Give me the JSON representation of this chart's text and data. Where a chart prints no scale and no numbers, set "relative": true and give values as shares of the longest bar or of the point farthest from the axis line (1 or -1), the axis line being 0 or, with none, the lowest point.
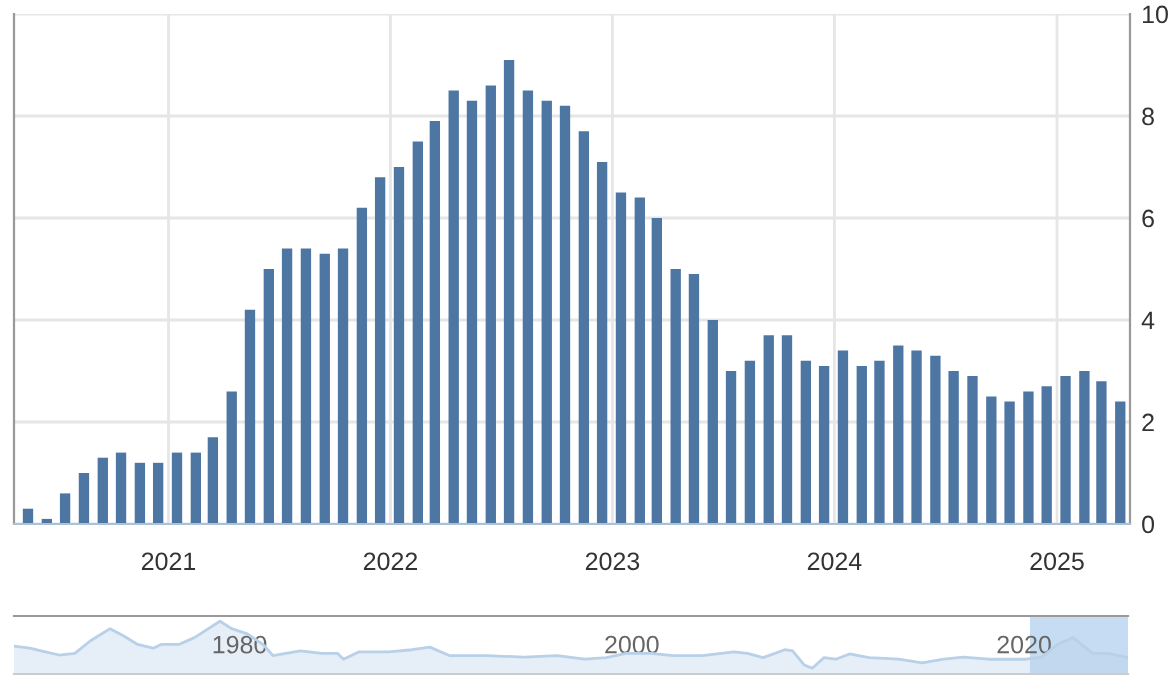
{
  "chart_data": [
    {
      "type": "bar",
      "x": [
        "2020-05-15",
        "2020-06-15",
        "2020-07-15",
        "2020-08-15",
        "2020-09-15",
        "2020-10-15",
        "2020-11-15",
        "2020-12-15",
        "2021-01-15",
        "2021-02-15",
        "2021-03-15",
        "2021-04-15",
        "2021-05-15",
        "2021-06-15",
        "2021-07-15",
        "2021-08-15",
        "2021-09-15",
        "2021-10-15",
        "2021-11-15",
        "2021-12-15",
        "2022-01-15",
        "2022-02-15",
        "2022-03-15",
        "2022-04-15",
        "2022-05-15",
        "2022-06-15",
        "2022-07-15",
        "2022-08-15",
        "2022-09-15",
        "2022-10-15",
        "2022-11-15",
        "2022-12-15",
        "2023-01-15",
        "2023-02-15",
        "2023-03-15",
        "2023-04-15",
        "2023-05-15",
        "2023-06-15",
        "2023-07-15",
        "2023-08-15",
        "2023-09-15",
        "2023-10-15",
        "2023-11-15",
        "2023-12-15",
        "2024-01-15",
        "2024-02-15",
        "2024-03-15",
        "2024-04-15",
        "2024-05-15",
        "2024-06-15",
        "2024-07-15",
        "2024-08-15",
        "2024-09-15",
        "2024-10-15",
        "2024-11-15",
        "2024-12-15",
        "2025-01-15",
        "2025-02-15",
        "2025-03-15",
        "2025-04-15"
      ],
      "series": [
        {
          "color": "#4e76a3",
          "values": [
            0.3,
            0.1,
            0.6,
            1.0,
            1.3,
            1.4,
            1.2,
            1.2,
            1.4,
            1.4,
            1.7,
            2.6,
            4.2,
            5.0,
            5.4,
            5.4,
            5.3,
            5.4,
            6.2,
            6.8,
            7.0,
            7.5,
            7.9,
            8.5,
            8.3,
            8.6,
            9.1,
            8.5,
            8.3,
            8.2,
            7.7,
            7.1,
            6.5,
            6.4,
            6.0,
            5.0,
            4.9,
            4.0,
            3.0,
            3.2,
            3.7,
            3.7,
            3.2,
            3.1,
            3.4,
            3.1,
            3.2,
            3.5,
            3.4,
            3.3,
            3.0,
            2.9,
            2.5,
            2.4,
            2.6,
            2.7,
            2.9,
            3.0,
            2.8,
            2.4
          ]
        }
      ],
      "xlim": [
        "2020-04-22",
        "2025-05-01"
      ],
      "xticks": [
        {
          "value": "2021-01-01",
          "label": "2021"
        },
        {
          "value": "2022-01-01",
          "label": "2022"
        },
        {
          "value": "2023-01-01",
          "label": "2023"
        },
        {
          "value": "2024-01-01",
          "label": "2024"
        },
        {
          "value": "2025-01-01",
          "label": "2025"
        }
      ],
      "ylim": [
        0,
        10
      ],
      "yticks": [
        0,
        2,
        4,
        6,
        8,
        10
      ],
      "grid": true,
      "legend": false
    },
    {
      "type": "area",
      "relative": true,
      "x": [
        1968.5,
        1969.3,
        1970.1,
        1970.8,
        1971.6,
        1972.4,
        1973.4,
        1974.1,
        1974.8,
        1975.6,
        1976.0,
        1976.9,
        1977.7,
        1979.0,
        1979.6,
        1980.4,
        1981.2,
        1981.7,
        1983.1,
        1984.2,
        1985.0,
        1985.3,
        1986.1,
        1987.6,
        1988.8,
        1989.7,
        1990.7,
        1992.6,
        1994.5,
        1996.2,
        1997.6,
        1998.7,
        1999.7,
        2001.0,
        2002.1,
        2003.6,
        2005.2,
        2005.9,
        2006.7,
        2007.8,
        2008.2,
        2008.8,
        2009.2,
        2009.8,
        2010.4,
        2011.1,
        2012.1,
        2013.6,
        2014.8,
        2015.9,
        2016.9,
        2018.2,
        2020.1,
        2020.9,
        2021.7,
        2022.5,
        2023.5,
        2024.3,
        2025.3
      ],
      "series": [
        {
          "color": "#b8d0e8",
          "values": [
            0.53,
            0.49,
            0.42,
            0.36,
            0.39,
            0.63,
            0.86,
            0.72,
            0.56,
            0.49,
            0.56,
            0.56,
            0.69,
            1,
            0.86,
            0.76,
            0.56,
            0.35,
            0.44,
            0.39,
            0.39,
            0.28,
            0.42,
            0.42,
            0.46,
            0.51,
            0.35,
            0.35,
            0.32,
            0.35,
            0.28,
            0.31,
            0.39,
            0.39,
            0.35,
            0.35,
            0.42,
            0.39,
            0.31,
            0.46,
            0.44,
            0.17,
            0.11,
            0.31,
            0.28,
            0.38,
            0.31,
            0.28,
            0.21,
            0.28,
            0.32,
            0.28,
            0.28,
            0.32,
            0.56,
            0.69,
            0.39,
            0.39,
            0.31
          ]
        }
      ],
      "xlim": [
        1968.5,
        2025.3
      ],
      "xticks": [
        1980,
        2000,
        2020
      ],
      "bands": [
        {
          "axis": "x",
          "from": 2020.3,
          "to": 2025.3,
          "color": "#c6dcf2"
        }
      ],
      "grid": false,
      "legend": false
    }
  ]
}
